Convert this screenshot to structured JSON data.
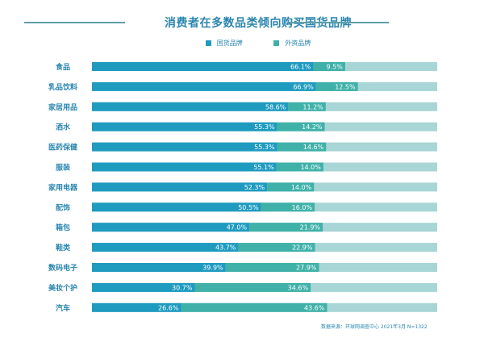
{
  "chart_data": {
    "type": "bar",
    "orientation": "horizontal",
    "stacked": true,
    "title": "消费者在多数品类倾向购买国货品牌",
    "categories": [
      "食品",
      "乳品饮料",
      "家居用品",
      "酒水",
      "医药保健",
      "服装",
      "家用电器",
      "配饰",
      "箱包",
      "鞋类",
      "数码电子",
      "美妆个护",
      "汽车"
    ],
    "series": [
      {
        "name": "国货品牌",
        "color": "#1f9bc0",
        "values": [
          66.1,
          66.9,
          58.6,
          55.3,
          55.3,
          55.1,
          52.3,
          50.5,
          47.0,
          43.7,
          39.9,
          30.7,
          26.6
        ]
      },
      {
        "name": "外资品牌",
        "color": "#3fb1a9",
        "values": [
          9.5,
          12.5,
          11.2,
          14.2,
          14.6,
          14.0,
          14.0,
          16.0,
          21.9,
          22.9,
          27.9,
          34.6,
          43.6
        ]
      }
    ],
    "remainder_color": "#a8d5d5",
    "value_format": "{v}%",
    "xlim": [
      0,
      100
    ],
    "xlabel": "",
    "ylabel": "",
    "grid": false,
    "legend_position": "top-center"
  },
  "header": {
    "title": "消费者在多数品类倾向购买国货品牌",
    "line_color": "#5f9fa6"
  },
  "legend": {
    "items": [
      {
        "label": "国货品牌",
        "color": "#1f9bc0"
      },
      {
        "label": "外资品牌",
        "color": "#3fb1a9"
      }
    ]
  },
  "footer": {
    "source": "数据来源：环球网调查中心 2021年3月 N=1322"
  }
}
